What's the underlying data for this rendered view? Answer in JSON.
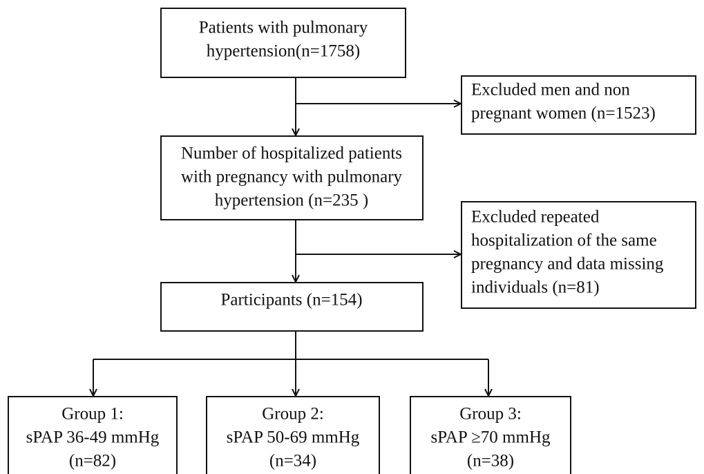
{
  "nodes": [
    {
      "lines": [
        "Patients with pulmonary",
        "hypertension(n=1758)"
      ]
    },
    {
      "lines": [
        "Excluded men and non",
        "pregnant women  (n=1523)"
      ]
    },
    {
      "lines": [
        "Number of hospitalized patients",
        "with pregnancy with pulmonary",
        "hypertension (n=235 )"
      ]
    },
    {
      "lines": [
        "Excluded repeated",
        "hospitalization of the same",
        "pregnancy and data missing",
        "individuals (n=81)"
      ]
    },
    {
      "lines": [
        "Participants (n=154)"
      ]
    },
    {
      "lines": [
        "Group 1:",
        "sPAP 36-49 mmHg",
        "(n=82)"
      ]
    },
    {
      "lines": [
        "Group 2:",
        "sPAP 50-69 mmHg",
        "(n=34)"
      ]
    },
    {
      "lines": [
        "Group 3:",
        "sPAP ≥70 mmHg",
        "(n=38)"
      ]
    }
  ]
}
